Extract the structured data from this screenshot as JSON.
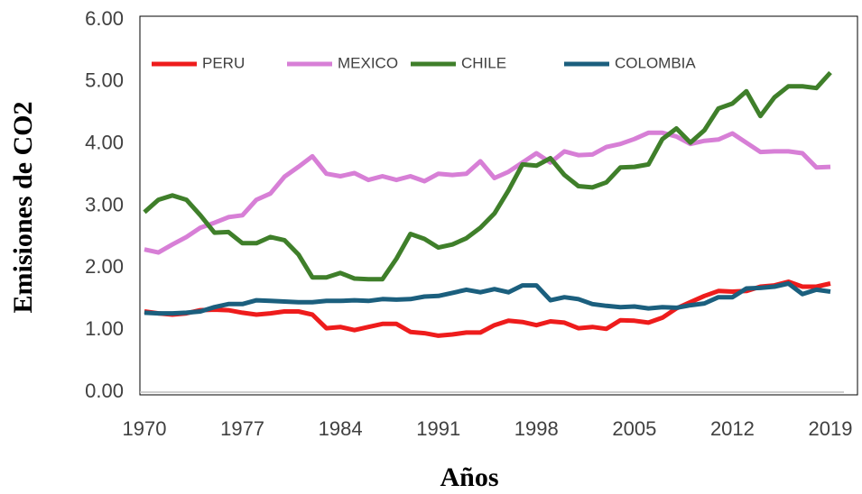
{
  "chart_data": {
    "type": "line",
    "x_label": "Años",
    "y_label": "Emisiones de CO2",
    "x": [
      1970,
      1971,
      1972,
      1973,
      1974,
      1975,
      1976,
      1977,
      1978,
      1979,
      1980,
      1981,
      1982,
      1983,
      1984,
      1985,
      1986,
      1987,
      1988,
      1989,
      1990,
      1991,
      1992,
      1993,
      1994,
      1995,
      1996,
      1997,
      1998,
      1999,
      2000,
      2001,
      2002,
      2003,
      2004,
      2005,
      2006,
      2007,
      2008,
      2009,
      2010,
      2011,
      2012,
      2013,
      2014,
      2015,
      2016,
      2017,
      2018,
      2019
    ],
    "series": [
      {
        "name": "PERU",
        "color": "#ee1c1c",
        "values": [
          1.3,
          1.27,
          1.25,
          1.27,
          1.32,
          1.33,
          1.32,
          1.28,
          1.25,
          1.27,
          1.3,
          1.3,
          1.25,
          1.03,
          1.05,
          1.0,
          1.05,
          1.1,
          1.1,
          0.97,
          0.95,
          0.91,
          0.93,
          0.96,
          0.96,
          1.08,
          1.15,
          1.13,
          1.08,
          1.14,
          1.12,
          1.03,
          1.05,
          1.02,
          1.16,
          1.15,
          1.12,
          1.2,
          1.35,
          1.45,
          1.55,
          1.63,
          1.62,
          1.63,
          1.7,
          1.72,
          1.78,
          1.7,
          1.7,
          1.75
        ]
      },
      {
        "name": "MEXICO",
        "color": "#d77fd6",
        "values": [
          2.3,
          2.25,
          2.38,
          2.5,
          2.65,
          2.73,
          2.82,
          2.85,
          3.1,
          3.2,
          3.47,
          3.63,
          3.8,
          3.52,
          3.48,
          3.53,
          3.42,
          3.48,
          3.42,
          3.48,
          3.4,
          3.52,
          3.5,
          3.52,
          3.72,
          3.45,
          3.55,
          3.7,
          3.85,
          3.7,
          3.88,
          3.82,
          3.83,
          3.95,
          4.0,
          4.08,
          4.18,
          4.18,
          4.12,
          4.0,
          4.05,
          4.07,
          4.17,
          4.02,
          3.87,
          3.88,
          3.88,
          3.85,
          3.62,
          3.63
        ]
      },
      {
        "name": "CHILE",
        "color": "#3f7f2a",
        "values": [
          2.9,
          3.1,
          3.17,
          3.1,
          2.85,
          2.57,
          2.58,
          2.4,
          2.4,
          2.5,
          2.45,
          2.22,
          1.85,
          1.85,
          1.92,
          1.83,
          1.82,
          1.82,
          2.15,
          2.55,
          2.47,
          2.33,
          2.38,
          2.48,
          2.65,
          2.88,
          3.25,
          3.67,
          3.65,
          3.77,
          3.5,
          3.32,
          3.3,
          3.38,
          3.62,
          3.63,
          3.67,
          4.08,
          4.25,
          4.02,
          4.22,
          4.57,
          4.65,
          4.85,
          4.45,
          4.75,
          4.93,
          4.93,
          4.9,
          5.15
        ]
      },
      {
        "name": "COLOMBIA",
        "color": "#1b5f7e",
        "values": [
          1.28,
          1.27,
          1.27,
          1.28,
          1.3,
          1.37,
          1.42,
          1.42,
          1.48,
          1.47,
          1.46,
          1.45,
          1.45,
          1.47,
          1.47,
          1.48,
          1.47,
          1.5,
          1.49,
          1.5,
          1.54,
          1.55,
          1.6,
          1.65,
          1.61,
          1.66,
          1.61,
          1.72,
          1.72,
          1.48,
          1.53,
          1.5,
          1.42,
          1.39,
          1.37,
          1.38,
          1.35,
          1.37,
          1.36,
          1.4,
          1.43,
          1.53,
          1.53,
          1.67,
          1.68,
          1.7,
          1.75,
          1.58,
          1.65,
          1.62
        ]
      }
    ],
    "xlim": [
      1970,
      2019
    ],
    "xticks": [
      1970,
      1977,
      1984,
      1991,
      1998,
      2005,
      2012,
      2019
    ],
    "ylim": [
      0,
      6
    ],
    "yticks": [
      {
        "value": 0,
        "label": "0.00"
      },
      {
        "value": 1,
        "label": "1.00"
      },
      {
        "value": 2,
        "label": "2.00"
      },
      {
        "value": 3,
        "label": "3.00"
      },
      {
        "value": 4,
        "label": "4.00"
      },
      {
        "value": 5,
        "label": "5.00"
      },
      {
        "value": 6,
        "label": "6.00"
      }
    ],
    "legend": "top",
    "grid": false
  }
}
